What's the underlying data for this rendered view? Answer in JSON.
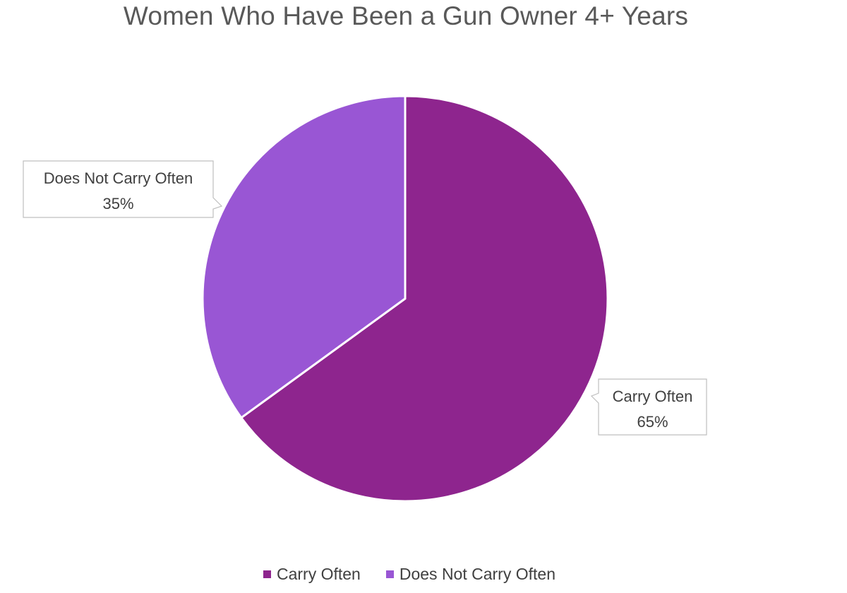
{
  "chart_data": {
    "type": "pie",
    "title": "Women Who Have Been a Gun Owner 4+ Years",
    "slices": [
      {
        "label": "Carry Often",
        "value": 65,
        "value_label": "65%",
        "color": "#8e258e"
      },
      {
        "label": "Does Not Carry Often",
        "value": 35,
        "value_label": "35%",
        "color": "#9956d4"
      }
    ],
    "legend_position": "bottom",
    "data_labels": "callouts"
  }
}
